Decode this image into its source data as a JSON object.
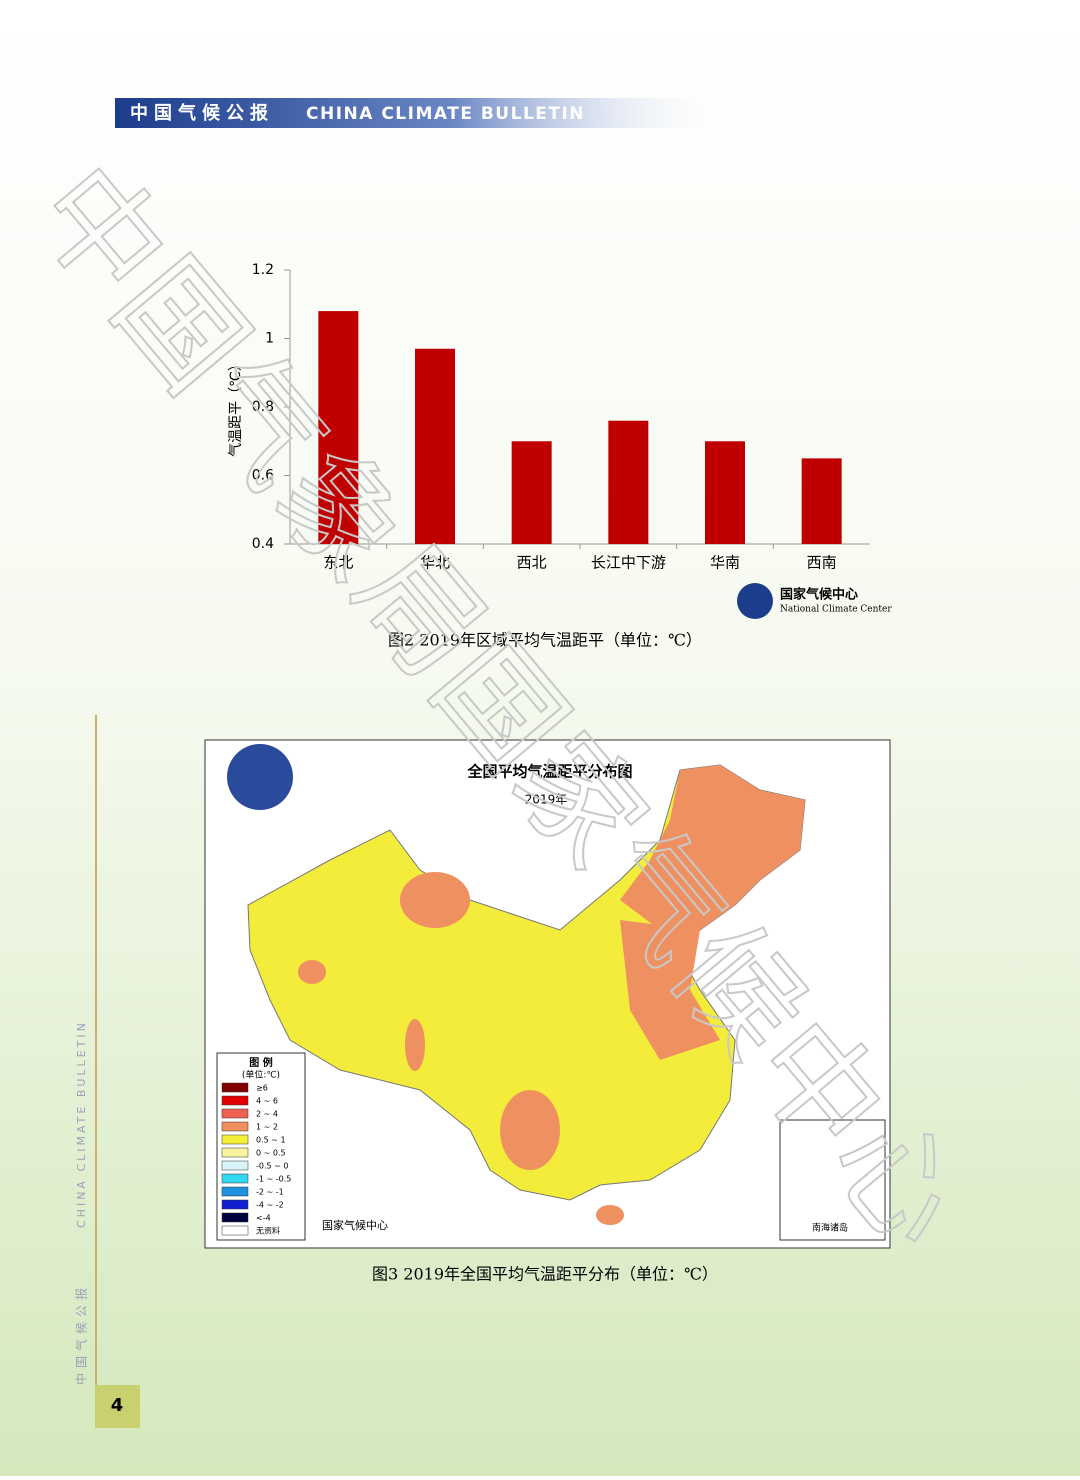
{
  "header": {
    "title_cn": "中国气候公报",
    "title_en": "CHINA CLIMATE BULLETIN"
  },
  "watermark": "中国气象局国家气候中心",
  "chart_data": {
    "type": "bar",
    "y_label": "气温距平（℃）",
    "categories": [
      "东北",
      "华北",
      "西北",
      "长江中下游",
      "华南",
      "西南"
    ],
    "values": [
      1.08,
      0.97,
      0.7,
      0.76,
      0.7,
      0.65
    ],
    "color": "#c00000",
    "ylim": [
      0.4,
      1.2
    ],
    "yticks": [
      0.4,
      0.6,
      0.8,
      1,
      1.2
    ],
    "grid": false
  },
  "chart_logo": {
    "name_cn": "国家气候中心",
    "name_en": "National Climate Center"
  },
  "caption_2": "图2  2019年区域平均气温距平（单位：℃）",
  "map": {
    "title": "全国平均气温距平分布图",
    "subtitle": "2019年",
    "source": "国家气候中心",
    "inset": "南海诸岛",
    "legend": {
      "title": "图 例",
      "unit": "(单位:℃)",
      "items": [
        {
          "label": "≥6",
          "color": "#7f0000"
        },
        {
          "label": "4 ~ 6",
          "color": "#e00000"
        },
        {
          "label": "2 ~ 4",
          "color": "#f06050"
        },
        {
          "label": "1 ~ 2",
          "color": "#f09060"
        },
        {
          "label": "0.5 ~ 1",
          "color": "#f4f03a"
        },
        {
          "label": "0 ~ 0.5",
          "color": "#f8f4a0"
        },
        {
          "label": "-0.5 ~ 0",
          "color": "#d8f4f8"
        },
        {
          "label": "-1 ~ -0.5",
          "color": "#30d8f0"
        },
        {
          "label": "-2 ~ -1",
          "color": "#2090e0"
        },
        {
          "label": "-4 ~ -2",
          "color": "#1020d0"
        },
        {
          "label": "<-4",
          "color": "#000040"
        },
        {
          "label": "无资料",
          "color": "#ffffff"
        }
      ]
    }
  },
  "caption_3": "图3  2019年全国平均气温距平分布（单位：℃）",
  "page_number": "4"
}
